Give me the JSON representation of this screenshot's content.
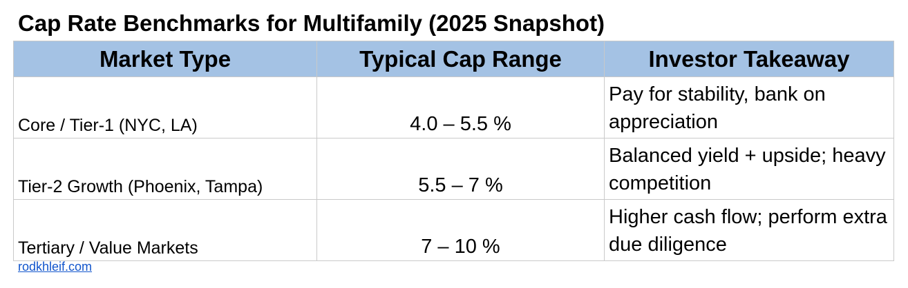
{
  "title": "Cap Rate Benchmarks for Multifamily (2025 Snapshot)",
  "colors": {
    "header_bg": "#a4c2e4",
    "border": "#c9c9c9",
    "link": "#1155cc"
  },
  "table": {
    "headers": [
      "Market Type",
      "Typical Cap Range",
      "Investor Takeaway"
    ],
    "rows": [
      {
        "market": "Core / Tier-1 (NYC, LA)",
        "range": "4.0 – 5.5 %",
        "takeaway": "Pay for stability, bank on appreciation"
      },
      {
        "market": "Tier-2 Growth (Phoenix, Tampa)",
        "range": "5.5 – 7 %",
        "takeaway": "Balanced yield + upside; heavy competition"
      },
      {
        "market": "Tertiary / Value Markets",
        "range": "7 – 10 %",
        "takeaway": "Higher cash flow; perform extra due diligence"
      }
    ]
  },
  "footer": {
    "link_text": "rodkhleif.com"
  }
}
